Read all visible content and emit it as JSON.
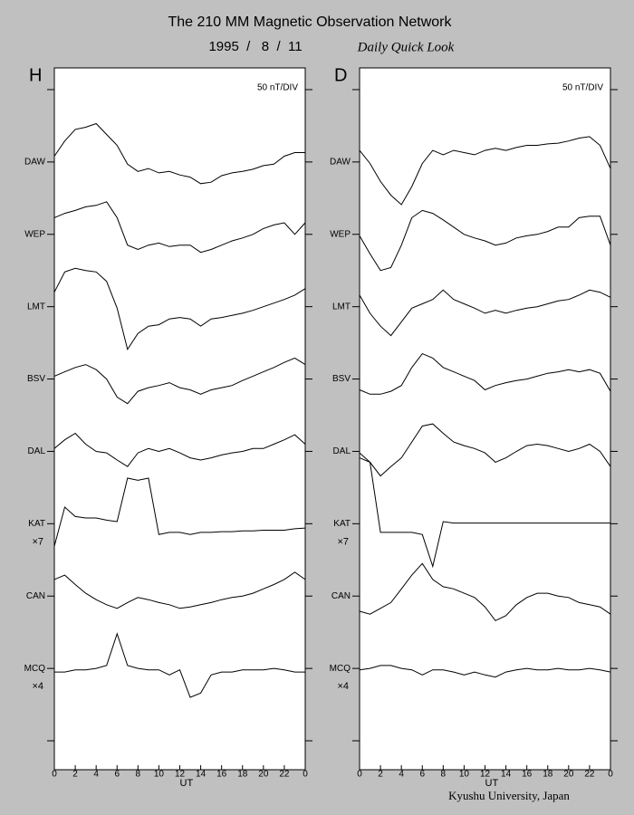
{
  "title": "The 210 MM Magnetic Observation Network",
  "date": "1995  /   8  /  11",
  "subtitle": "Daily Quick Look",
  "footer": "Kyushu University, Japan",
  "chart_data": [
    {
      "type": "line",
      "title": "H",
      "annotation": "50 nT/DIV",
      "x_label": "UT",
      "x": [
        0,
        1,
        2,
        3,
        4,
        5,
        6,
        7,
        8,
        9,
        10,
        11,
        12,
        13,
        14,
        15,
        16,
        17,
        18,
        19,
        20,
        21,
        22,
        23,
        24
      ],
      "xlim": [
        0,
        24
      ],
      "xticks": [
        0,
        2,
        4,
        6,
        8,
        10,
        12,
        14,
        16,
        18,
        20,
        22,
        {
          "value": 24,
          "label": "0"
        }
      ],
      "ylim": [
        0,
        9.7
      ],
      "yticks": [
        0.4,
        1.4,
        2.4,
        3.4,
        4.4,
        5.4,
        6.4,
        7.4,
        8.4,
        9.4
      ],
      "series": [
        {
          "name": "DAW",
          "color": "#000000",
          "values": [
            8.48,
            8.69,
            8.85,
            8.88,
            8.93,
            8.78,
            8.63,
            8.37,
            8.27,
            8.31,
            8.25,
            8.27,
            8.22,
            8.19,
            8.1,
            8.12,
            8.21,
            8.25,
            8.27,
            8.3,
            8.35,
            8.37,
            8.48,
            8.53,
            8.53
          ]
        },
        {
          "name": "WEP",
          "color": "#000000",
          "values": [
            7.63,
            7.69,
            7.73,
            7.78,
            7.8,
            7.85,
            7.63,
            7.25,
            7.19,
            7.25,
            7.28,
            7.23,
            7.25,
            7.25,
            7.15,
            7.19,
            7.25,
            7.31,
            7.35,
            7.4,
            7.48,
            7.53,
            7.56,
            7.4,
            7.56
          ]
        },
        {
          "name": "LMT",
          "color": "#000000",
          "values": [
            6.6,
            6.88,
            6.93,
            6.9,
            6.88,
            6.75,
            6.38,
            5.81,
            6.03,
            6.13,
            6.15,
            6.23,
            6.25,
            6.23,
            6.13,
            6.23,
            6.25,
            6.28,
            6.31,
            6.35,
            6.4,
            6.45,
            6.5,
            6.56,
            6.65
          ]
        },
        {
          "name": "BSV",
          "color": "#000000",
          "values": [
            5.44,
            5.5,
            5.56,
            5.6,
            5.53,
            5.4,
            5.15,
            5.06,
            5.23,
            5.28,
            5.31,
            5.35,
            5.28,
            5.25,
            5.19,
            5.25,
            5.28,
            5.31,
            5.38,
            5.44,
            5.5,
            5.56,
            5.63,
            5.69,
            5.6
          ]
        },
        {
          "name": "DAL",
          "color": "#000000",
          "values": [
            4.44,
            4.56,
            4.65,
            4.5,
            4.4,
            4.38,
            4.28,
            4.19,
            4.38,
            4.44,
            4.4,
            4.44,
            4.38,
            4.31,
            4.28,
            4.31,
            4.35,
            4.38,
            4.4,
            4.44,
            4.44,
            4.5,
            4.56,
            4.63,
            4.5
          ]
        },
        {
          "name": "KAT",
          "scale_label": "×7",
          "color": "#000000",
          "values": [
            3.09,
            3.63,
            3.5,
            3.48,
            3.48,
            3.45,
            3.43,
            4.03,
            4.0,
            4.03,
            3.25,
            3.28,
            3.28,
            3.25,
            3.28,
            3.28,
            3.29,
            3.29,
            3.3,
            3.3,
            3.31,
            3.31,
            3.31,
            3.33,
            3.34
          ]
        },
        {
          "name": "CAN",
          "color": "#000000",
          "values": [
            2.63,
            2.69,
            2.56,
            2.44,
            2.35,
            2.28,
            2.23,
            2.31,
            2.38,
            2.35,
            2.31,
            2.28,
            2.23,
            2.25,
            2.28,
            2.31,
            2.35,
            2.38,
            2.4,
            2.44,
            2.5,
            2.56,
            2.63,
            2.73,
            2.63
          ]
        },
        {
          "name": "MCQ",
          "scale_label": "×4",
          "color": "#000000",
          "values": [
            1.35,
            1.35,
            1.38,
            1.38,
            1.4,
            1.44,
            1.88,
            1.44,
            1.4,
            1.38,
            1.38,
            1.31,
            1.38,
            1.0,
            1.06,
            1.31,
            1.35,
            1.35,
            1.38,
            1.38,
            1.38,
            1.4,
            1.38,
            1.35,
            1.35
          ]
        }
      ]
    },
    {
      "type": "line",
      "title": "D",
      "annotation": "50 nT/DIV",
      "x_label": "UT",
      "x": [
        0,
        1,
        2,
        3,
        4,
        5,
        6,
        7,
        8,
        9,
        10,
        11,
        12,
        13,
        14,
        15,
        16,
        17,
        18,
        19,
        20,
        21,
        22,
        23,
        24
      ],
      "xlim": [
        0,
        24
      ],
      "xticks": [
        0,
        2,
        4,
        6,
        8,
        10,
        12,
        14,
        16,
        18,
        20,
        22,
        {
          "value": 24,
          "label": "0"
        }
      ],
      "ylim": [
        0,
        9.7
      ],
      "yticks": [
        0.4,
        1.4,
        2.4,
        3.4,
        4.4,
        5.4,
        6.4,
        7.4,
        8.4,
        9.4
      ],
      "series": [
        {
          "name": "DAW",
          "color": "#000000",
          "values": [
            8.56,
            8.38,
            8.13,
            7.94,
            7.81,
            8.06,
            8.38,
            8.56,
            8.5,
            8.56,
            8.53,
            8.5,
            8.56,
            8.59,
            8.56,
            8.6,
            8.63,
            8.63,
            8.65,
            8.66,
            8.69,
            8.73,
            8.75,
            8.63,
            8.31
          ]
        },
        {
          "name": "WEP",
          "color": "#000000",
          "values": [
            7.38,
            7.13,
            6.9,
            6.94,
            7.25,
            7.63,
            7.73,
            7.69,
            7.6,
            7.5,
            7.4,
            7.35,
            7.31,
            7.25,
            7.28,
            7.35,
            7.38,
            7.4,
            7.44,
            7.5,
            7.5,
            7.63,
            7.65,
            7.65,
            7.25
          ]
        },
        {
          "name": "LMT",
          "color": "#000000",
          "values": [
            6.56,
            6.31,
            6.13,
            6.0,
            6.19,
            6.38,
            6.44,
            6.5,
            6.63,
            6.5,
            6.44,
            6.38,
            6.31,
            6.35,
            6.31,
            6.35,
            6.38,
            6.4,
            6.44,
            6.48,
            6.5,
            6.56,
            6.63,
            6.6,
            6.53
          ]
        },
        {
          "name": "BSV",
          "color": "#000000",
          "values": [
            5.25,
            5.19,
            5.19,
            5.23,
            5.31,
            5.56,
            5.75,
            5.69,
            5.56,
            5.5,
            5.44,
            5.38,
            5.25,
            5.31,
            5.35,
            5.38,
            5.4,
            5.44,
            5.48,
            5.5,
            5.53,
            5.5,
            5.53,
            5.48,
            5.23
          ]
        },
        {
          "name": "DAL",
          "color": "#000000",
          "values": [
            4.38,
            4.25,
            4.06,
            4.19,
            4.31,
            4.53,
            4.75,
            4.78,
            4.65,
            4.53,
            4.48,
            4.44,
            4.38,
            4.25,
            4.31,
            4.4,
            4.48,
            4.5,
            4.48,
            4.44,
            4.4,
            4.44,
            4.5,
            4.4,
            4.19
          ]
        },
        {
          "name": "KAT",
          "scale_label": "×7",
          "color": "#000000",
          "values": [
            4.31,
            4.25,
            3.28,
            3.28,
            3.28,
            3.28,
            3.25,
            2.81,
            3.43,
            3.41,
            3.41,
            3.41,
            3.41,
            3.41,
            3.41,
            3.41,
            3.41,
            3.41,
            3.41,
            3.41,
            3.41,
            3.41,
            3.41,
            3.41,
            3.41
          ]
        },
        {
          "name": "CAN",
          "color": "#000000",
          "values": [
            2.19,
            2.15,
            2.23,
            2.31,
            2.5,
            2.69,
            2.85,
            2.63,
            2.53,
            2.5,
            2.44,
            2.38,
            2.25,
            2.06,
            2.13,
            2.28,
            2.38,
            2.44,
            2.44,
            2.4,
            2.38,
            2.31,
            2.28,
            2.25,
            2.15
          ]
        },
        {
          "name": "MCQ",
          "scale_label": "×4",
          "color": "#000000",
          "values": [
            1.38,
            1.4,
            1.44,
            1.44,
            1.4,
            1.38,
            1.31,
            1.38,
            1.38,
            1.35,
            1.31,
            1.35,
            1.31,
            1.28,
            1.35,
            1.38,
            1.4,
            1.38,
            1.38,
            1.4,
            1.38,
            1.38,
            1.4,
            1.38,
            1.35
          ]
        }
      ]
    }
  ]
}
